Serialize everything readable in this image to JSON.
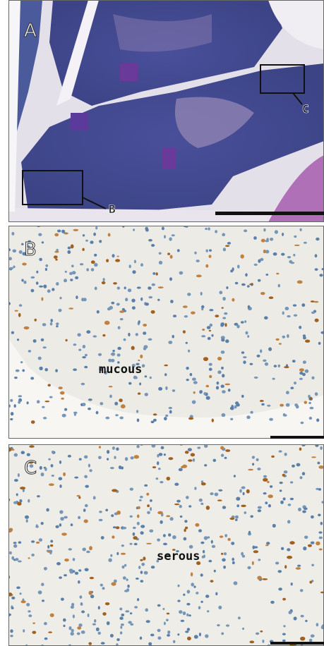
{
  "panels": [
    {
      "label": "A",
      "callouts": [
        "B",
        "C"
      ]
    },
    {
      "label": "B",
      "annotation": "mucous"
    },
    {
      "label": "C",
      "annotation": "serous"
    }
  ]
}
